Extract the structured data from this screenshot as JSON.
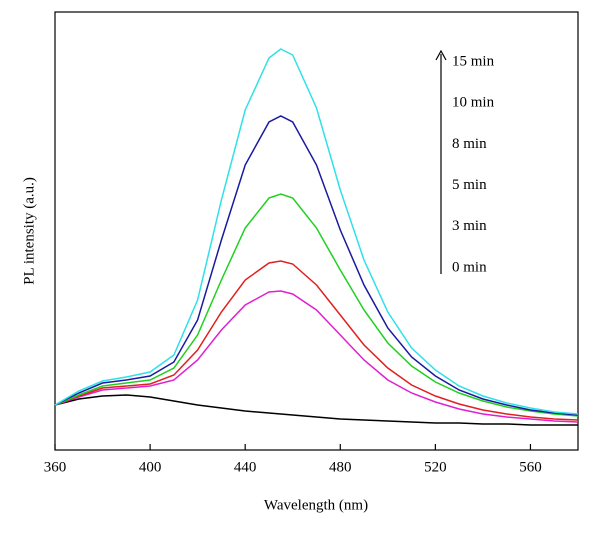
{
  "chart_data": {
    "type": "line",
    "x_label": "Wavelength (nm)",
    "y_label": "PL intensity (a.u.)",
    "x": [
      360,
      370,
      380,
      390,
      400,
      410,
      420,
      430,
      440,
      450,
      455,
      460,
      470,
      480,
      490,
      500,
      510,
      520,
      530,
      540,
      550,
      560,
      570,
      580
    ],
    "series": [
      {
        "name": "0 min",
        "color": "#000000",
        "values": [
          45,
          51,
          54,
          55,
          53,
          49,
          45,
          42,
          39,
          37,
          36,
          35,
          33,
          31,
          30,
          29,
          28,
          27,
          27,
          26,
          26,
          25,
          25,
          25
        ]
      },
      {
        "name": "3 min",
        "color": "#e020d0",
        "values": [
          45,
          53,
          60,
          62,
          64,
          70,
          90,
          120,
          145,
          158,
          159,
          156,
          140,
          115,
          90,
          70,
          57,
          48,
          41,
          36,
          33,
          31,
          29,
          28
        ]
      },
      {
        "name": "5 min",
        "color": "#e02020",
        "values": [
          45,
          54,
          62,
          64,
          66,
          75,
          100,
          138,
          170,
          187,
          189,
          186,
          165,
          135,
          105,
          82,
          65,
          54,
          46,
          40,
          36,
          33,
          31,
          30
        ]
      },
      {
        "name": "8 min",
        "color": "#20d020",
        "values": [
          45,
          55,
          64,
          67,
          70,
          82,
          115,
          170,
          222,
          252,
          256,
          252,
          222,
          180,
          140,
          107,
          84,
          68,
          57,
          49,
          43,
          39,
          36,
          34
        ]
      },
      {
        "name": "10 min",
        "color": "#1a1aa0",
        "values": [
          45,
          57,
          67,
          70,
          74,
          88,
          130,
          210,
          285,
          328,
          334,
          328,
          285,
          220,
          165,
          122,
          93,
          74,
          60,
          51,
          45,
          40,
          37,
          35
        ]
      },
      {
        "name": "15 min",
        "color": "#30e0e8",
        "values": [
          45,
          59,
          69,
          73,
          78,
          95,
          150,
          250,
          340,
          392,
          401,
          395,
          342,
          260,
          190,
          138,
          102,
          80,
          64,
          54,
          47,
          42,
          38,
          36
        ]
      }
    ],
    "xlim": [
      360,
      580
    ],
    "ylim": [
      0,
      438
    ],
    "xticks": [
      360,
      400,
      440,
      480,
      520,
      560
    ]
  }
}
